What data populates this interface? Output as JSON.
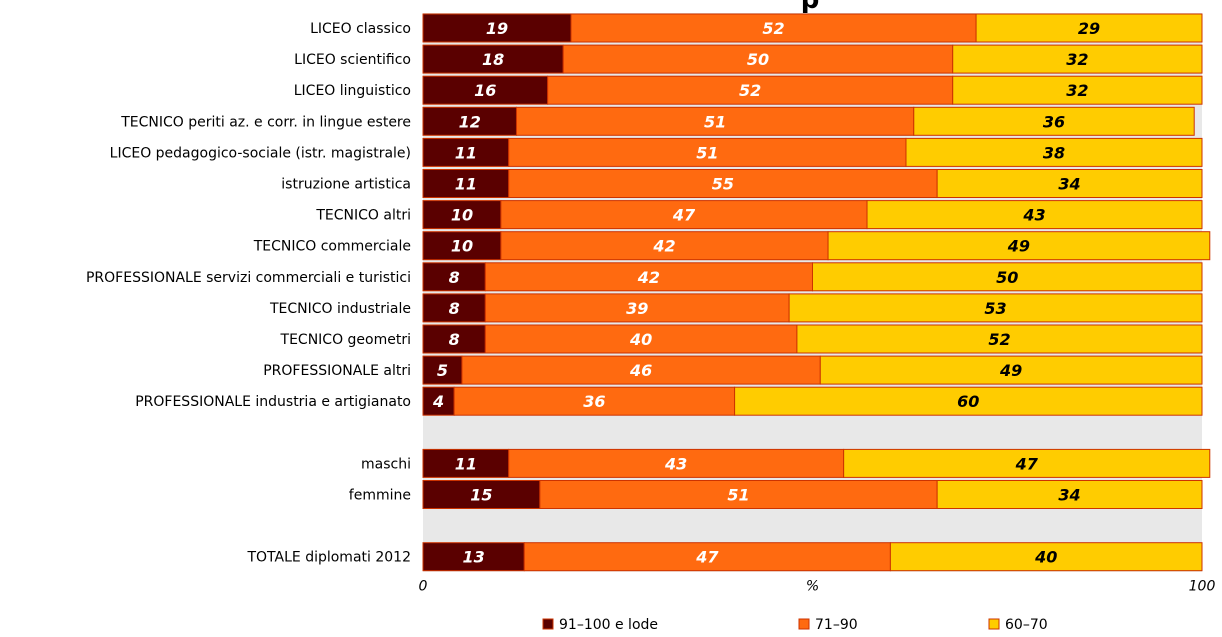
{
  "chart_data": {
    "type": "bar",
    "orientation": "horizontal",
    "stacked": true,
    "title": "p",
    "xlabel": "%",
    "xlim": [
      0,
      100
    ],
    "x_ticks": [
      "0",
      "100"
    ],
    "grid": false,
    "legend_position": "bottom",
    "categories": [
      "LICEO classico",
      "LICEO scientifico",
      "LICEO linguistico",
      "TECNICO periti az. e corr. in lingue estere",
      "LICEO pedagogico-sociale (istr. magistrale)",
      "istruzione artistica",
      "TECNICO altri",
      "TECNICO commerciale",
      "PROFESSIONALE servizi commerciali e turistici",
      "TECNICO industriale",
      "TECNICO geometri",
      "PROFESSIONALE altri",
      "PROFESSIONALE industria e artigianato",
      "",
      "maschi",
      "femmine",
      "",
      "TOTALE diplomati 2012"
    ],
    "series": [
      {
        "name": "91–100 e lode",
        "color": "#5a0000",
        "label_color": "#ffffff",
        "values": [
          19,
          18,
          16,
          12,
          11,
          11,
          10,
          10,
          8,
          8,
          8,
          5,
          4,
          null,
          11,
          15,
          null,
          13
        ]
      },
      {
        "name": "71–90",
        "color": "#ff6a10",
        "label_color": "#ffffff",
        "values": [
          52,
          50,
          52,
          51,
          51,
          55,
          47,
          42,
          42,
          39,
          40,
          46,
          36,
          null,
          43,
          51,
          null,
          47
        ]
      },
      {
        "name": "60–70",
        "color": "#ffcc00",
        "label_color": "#000000",
        "values": [
          29,
          32,
          32,
          36,
          38,
          34,
          43,
          49,
          50,
          53,
          52,
          49,
          60,
          null,
          47,
          34,
          null,
          40
        ]
      }
    ],
    "plot_background": "#e8e8e8",
    "bar_border_color": "#cc3300"
  }
}
